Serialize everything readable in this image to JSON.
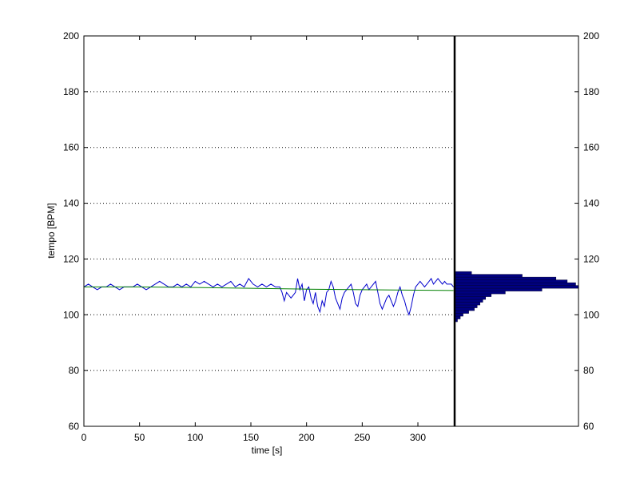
{
  "chart_data": {
    "type": "line",
    "title": "",
    "xlabel": "time [s]",
    "ylabel": "tempo [BPM]",
    "xlim": [
      0,
      333
    ],
    "ylim": [
      60,
      200
    ],
    "x_ticks": [
      0,
      50,
      100,
      150,
      200,
      250,
      300
    ],
    "x_tick_labels": [
      "0",
      "50",
      "100",
      "150",
      "200",
      "250",
      "300"
    ],
    "y_ticks": [
      60,
      80,
      100,
      120,
      140,
      160,
      180,
      200
    ],
    "y_tick_labels": [
      "60",
      "80",
      "100",
      "120",
      "140",
      "160",
      "180",
      "200"
    ],
    "grid": "horizontal-dotted",
    "colors": {
      "tempo": "#0000cc",
      "trend": "#008000",
      "histogram": "#000080",
      "axes": "#000000"
    },
    "series": [
      {
        "x": [
          0,
          4,
          8,
          12,
          16,
          20,
          24,
          28,
          32,
          36,
          40,
          44,
          48,
          52,
          56,
          60,
          64,
          68,
          72,
          76,
          80,
          84,
          88,
          92,
          96,
          100,
          104,
          108,
          112,
          116,
          120,
          124,
          128,
          132,
          136,
          140,
          144,
          148,
          152,
          156,
          160,
          164,
          168,
          172,
          176,
          178,
          180,
          182,
          184,
          186,
          188,
          190,
          192,
          194,
          196,
          198,
          200,
          202,
          204,
          206,
          208,
          210,
          212,
          214,
          216,
          218,
          220,
          222,
          224,
          226,
          228,
          230,
          232,
          234,
          236,
          238,
          240,
          242,
          244,
          246,
          248,
          250,
          252,
          254,
          256,
          258,
          260,
          262,
          264,
          266,
          268,
          270,
          272,
          274,
          276,
          278,
          280,
          282,
          284,
          286,
          288,
          290,
          292,
          294,
          296,
          298,
          300,
          302,
          304,
          306,
          308,
          310,
          312,
          314,
          316,
          318,
          320,
          322,
          324,
          326,
          328,
          330,
          332
        ],
        "values": [
          110,
          111,
          110,
          109,
          110,
          110,
          111,
          110,
          109,
          110,
          110,
          110,
          111,
          110,
          109,
          110,
          111,
          112,
          111,
          110,
          110,
          111,
          110,
          111,
          110,
          112,
          111,
          112,
          111,
          110,
          111,
          110,
          111,
          112,
          110,
          111,
          110,
          113,
          111,
          110,
          111,
          110,
          111,
          110,
          110,
          108,
          105,
          108,
          107,
          106,
          107,
          108,
          113,
          109,
          111,
          105,
          109,
          110,
          106,
          104,
          108,
          103,
          101,
          105,
          103,
          108,
          109,
          112,
          110,
          106,
          104,
          102,
          106,
          108,
          109,
          110,
          111,
          108,
          104,
          103,
          107,
          109,
          110,
          111,
          109,
          110,
          111,
          112,
          108,
          104,
          102,
          104,
          106,
          107,
          105,
          103,
          105,
          108,
          110,
          107,
          105,
          102,
          100,
          103,
          107,
          110,
          111,
          112,
          111,
          110,
          111,
          112,
          113,
          111,
          112,
          113,
          112,
          111,
          112,
          111,
          111,
          111,
          110
        ]
      },
      {
        "x": [
          0,
          50,
          100,
          150,
          200,
          250,
          300,
          332
        ],
        "values": [
          110,
          110,
          109.8,
          109.5,
          109.2,
          109,
          108.8,
          108.7
        ]
      }
    ],
    "histogram": {
      "bins": [
        98,
        99,
        100,
        101,
        102,
        103,
        104,
        105,
        106,
        107,
        108,
        109,
        110,
        111,
        112,
        113,
        114,
        115
      ],
      "counts": [
        1,
        2,
        3,
        5,
        7,
        8,
        9,
        10,
        11,
        13,
        18,
        31,
        44,
        43,
        40,
        36,
        24,
        6
      ]
    }
  }
}
